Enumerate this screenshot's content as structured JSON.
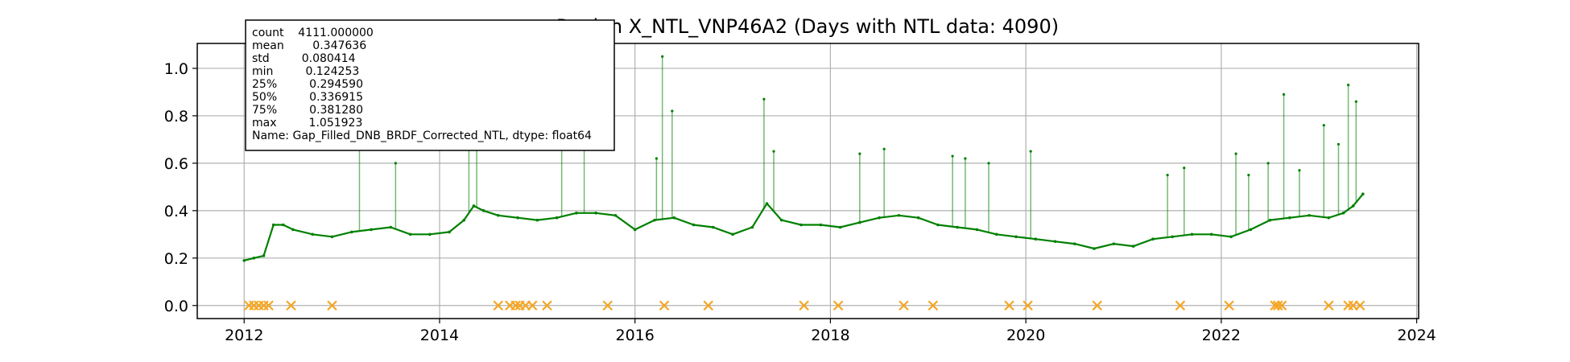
{
  "chart_data": {
    "type": "line",
    "title": "Region X_NTL_VNP46A2 (Days with NTL data: 4090)",
    "xlabel": "",
    "ylabel": "",
    "xlim": [
      2011.52,
      2024.02
    ],
    "ylim": [
      -0.055,
      1.105
    ],
    "grid": true,
    "x_ticks": [
      "2012",
      "2014",
      "2016",
      "2018",
      "2020",
      "2022",
      "2024"
    ],
    "y_ticks": [
      "0.0",
      "0.2",
      "0.4",
      "0.6",
      "0.8",
      "1.0"
    ],
    "stats_box": {
      "placement": "top-left",
      "lines": [
        "count    4111.000000",
        "mean        0.347636",
        "std         0.080414",
        "min         0.124253",
        "25%         0.294590",
        "50%         0.336915",
        "75%         0.381280",
        "max         1.051923",
        "Name: Gap_Filled_DNB_BRDF_Corrected_NTL, dtype: float64"
      ]
    },
    "colors": {
      "series": "#008000",
      "missing": "#f5a623",
      "grid": "#b0b0b0"
    },
    "series": [
      {
        "style": "line-with-points",
        "x": [
          2012.0,
          2012.1,
          2012.2,
          2012.3,
          2012.4,
          2012.5,
          2012.7,
          2012.9,
          2013.1,
          2013.3,
          2013.5,
          2013.7,
          2013.9,
          2014.1,
          2014.25,
          2014.35,
          2014.45,
          2014.6,
          2014.8,
          2015.0,
          2015.2,
          2015.4,
          2015.6,
          2015.8,
          2016.0,
          2016.2,
          2016.4,
          2016.6,
          2016.8,
          2017.0,
          2017.2,
          2017.35,
          2017.5,
          2017.7,
          2017.9,
          2018.1,
          2018.3,
          2018.5,
          2018.7,
          2018.9,
          2019.1,
          2019.3,
          2019.5,
          2019.7,
          2019.9,
          2020.1,
          2020.3,
          2020.5,
          2020.7,
          2020.9,
          2021.1,
          2021.3,
          2021.5,
          2021.7,
          2021.9,
          2022.1,
          2022.3,
          2022.5,
          2022.7,
          2022.9,
          2023.1,
          2023.25,
          2023.35,
          2023.45
        ],
        "y": [
          0.19,
          0.2,
          0.21,
          0.34,
          0.34,
          0.32,
          0.3,
          0.29,
          0.31,
          0.32,
          0.33,
          0.3,
          0.3,
          0.31,
          0.36,
          0.42,
          0.4,
          0.38,
          0.37,
          0.36,
          0.37,
          0.39,
          0.39,
          0.38,
          0.32,
          0.36,
          0.37,
          0.34,
          0.33,
          0.3,
          0.33,
          0.43,
          0.36,
          0.34,
          0.34,
          0.33,
          0.35,
          0.37,
          0.38,
          0.37,
          0.34,
          0.33,
          0.32,
          0.3,
          0.29,
          0.28,
          0.27,
          0.26,
          0.24,
          0.26,
          0.25,
          0.28,
          0.29,
          0.3,
          0.3,
          0.29,
          0.32,
          0.36,
          0.37,
          0.38,
          0.37,
          0.39,
          0.42,
          0.47
        ]
      },
      {
        "style": "markers-x",
        "x": [
          2012.05,
          2012.1,
          2012.15,
          2012.2,
          2012.25,
          2012.48,
          2012.9,
          2014.6,
          2014.72,
          2014.78,
          2014.82,
          2014.88,
          2014.95,
          2015.1,
          2015.72,
          2016.3,
          2016.75,
          2017.73,
          2018.08,
          2018.75,
          2019.05,
          2019.83,
          2020.02,
          2020.73,
          2021.58,
          2022.08,
          2022.55,
          2022.58,
          2022.62,
          2023.1,
          2023.3,
          2023.35,
          2023.42
        ],
        "y": [
          0.0,
          0.0,
          0.0,
          0.0,
          0.0,
          0.0,
          0.0,
          0.0,
          0.0,
          0.0,
          0.0,
          0.0,
          0.0,
          0.0,
          0.0,
          0.0,
          0.0,
          0.0,
          0.0,
          0.0,
          0.0,
          0.0,
          0.0,
          0.0,
          0.0,
          0.0,
          0.0,
          0.0,
          0.0,
          0.0,
          0.0,
          0.0,
          0.0
        ]
      }
    ],
    "spikes": {
      "x": [
        2013.18,
        2013.55,
        2014.3,
        2014.38,
        2015.25,
        2015.48,
        2016.22,
        2016.28,
        2016.38,
        2017.32,
        2017.42,
        2018.3,
        2018.55,
        2019.25,
        2019.38,
        2019.62,
        2020.05,
        2021.45,
        2021.62,
        2022.15,
        2022.28,
        2022.48,
        2022.64,
        2022.8,
        2023.05,
        2023.2,
        2023.3,
        2023.38
      ],
      "y": [
        0.68,
        0.6,
        0.82,
        0.9,
        0.73,
        0.7,
        0.62,
        1.05,
        0.82,
        0.87,
        0.65,
        0.64,
        0.66,
        0.63,
        0.62,
        0.6,
        0.65,
        0.55,
        0.58,
        0.64,
        0.55,
        0.6,
        0.89,
        0.57,
        0.76,
        0.68,
        0.93,
        0.86
      ]
    }
  }
}
